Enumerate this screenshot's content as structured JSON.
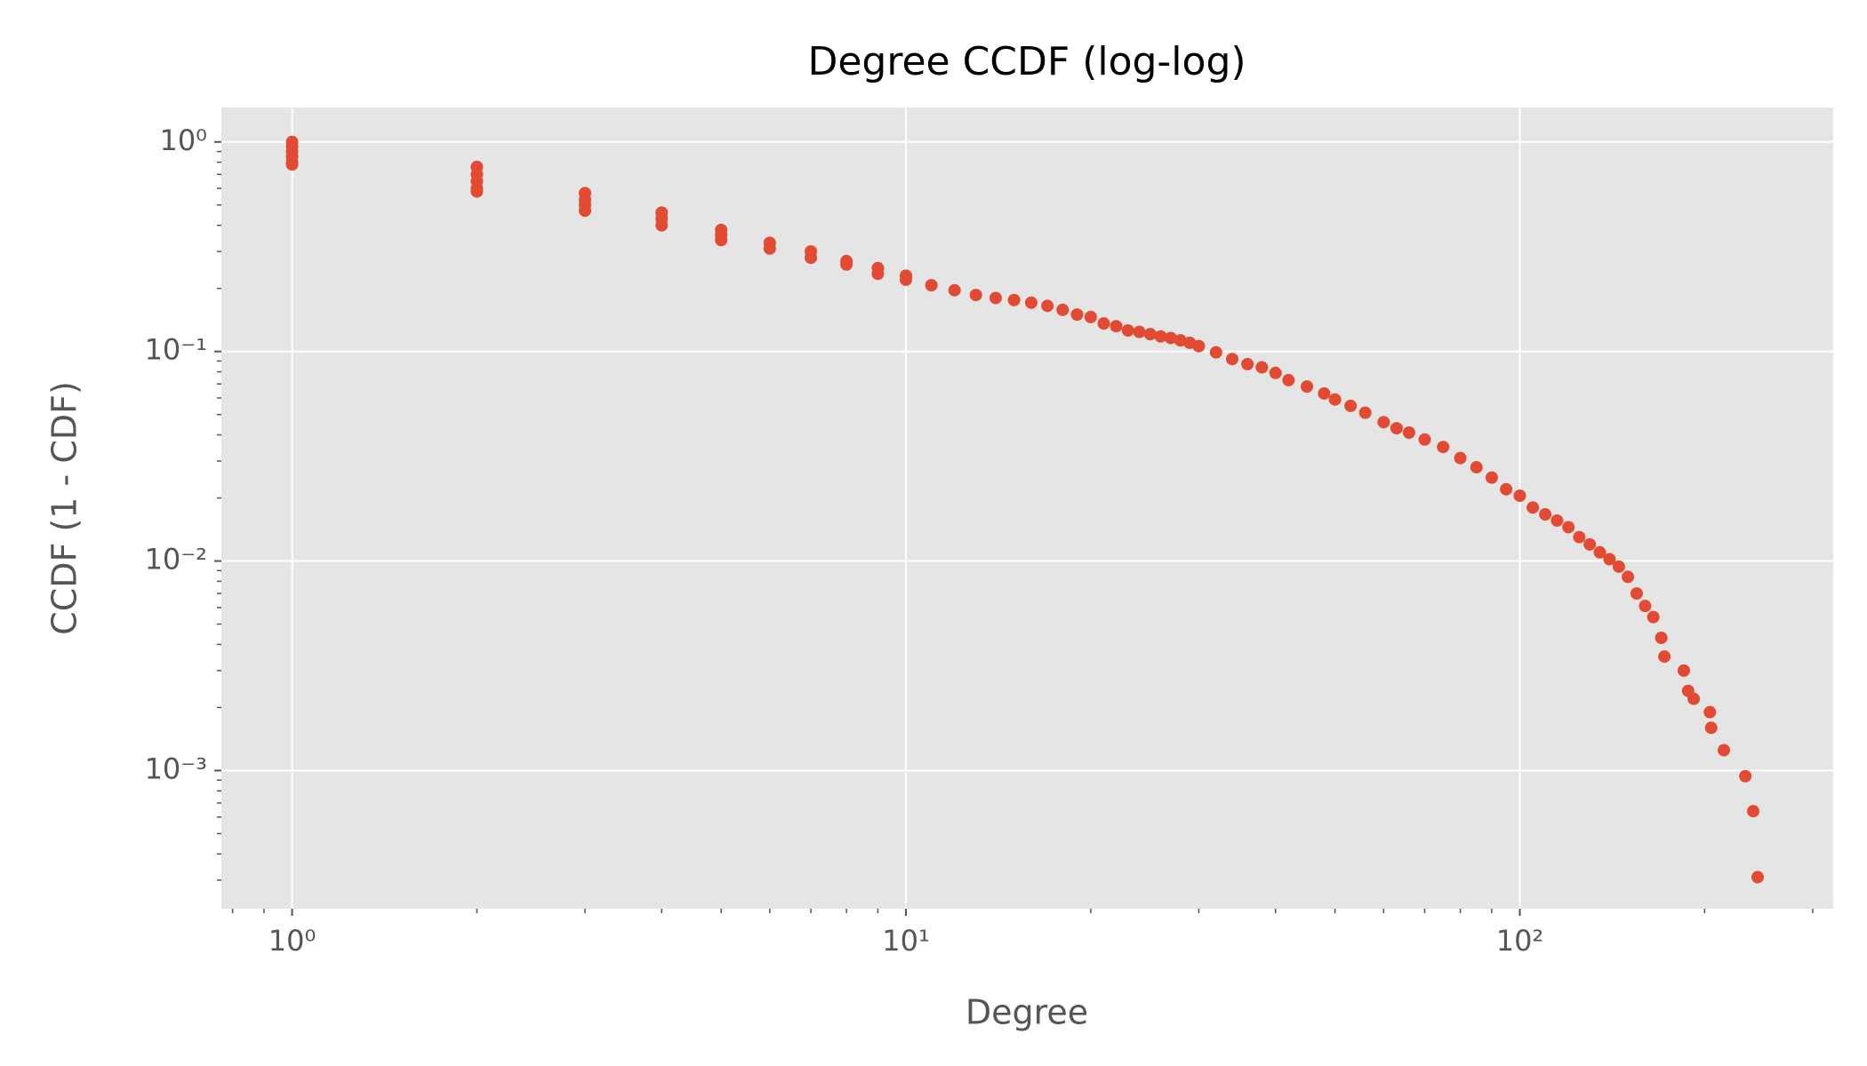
{
  "chart_data": {
    "type": "scatter",
    "title": "Degree CCDF (log-log)",
    "x_label": "Degree",
    "y_label": "CCDF (1 - CDF)",
    "x_scale": "log",
    "y_scale": "log",
    "grid": true,
    "color": "#e24a33",
    "xlim": [
      0.767,
      324
    ],
    "ylim": [
      0.000219,
      1.46
    ],
    "xticks": [
      {
        "value": 1,
        "label": "10⁰"
      },
      {
        "value": 10,
        "label": "10¹"
      },
      {
        "value": 100,
        "label": "10²"
      }
    ],
    "yticks": [
      {
        "value": 0.001,
        "label": "10⁻³"
      },
      {
        "value": 0.01,
        "label": "10⁻²"
      },
      {
        "value": 0.1,
        "label": "10⁻¹"
      },
      {
        "value": 1,
        "label": "10⁰"
      }
    ],
    "xminorticks": [
      0.8,
      0.9,
      2,
      3,
      4,
      5,
      6,
      7,
      8,
      9,
      20,
      30,
      40,
      50,
      60,
      70,
      80,
      90,
      200,
      300
    ],
    "yminorticks": [
      0.0003,
      0.0004,
      0.0005,
      0.0006,
      0.0007,
      0.0008,
      0.0009,
      0.002,
      0.003,
      0.004,
      0.005,
      0.006,
      0.007,
      0.008,
      0.009,
      0.02,
      0.03,
      0.04,
      0.05,
      0.06,
      0.07,
      0.08,
      0.09,
      0.2,
      0.3,
      0.4,
      0.5,
      0.6,
      0.7,
      0.8,
      0.9
    ],
    "x": [
      1,
      1,
      1,
      1,
      1,
      1,
      2,
      2,
      2,
      2,
      2,
      3,
      3,
      3,
      3,
      4,
      4,
      4,
      5,
      5,
      5,
      6,
      6,
      7,
      7,
      8,
      8,
      9,
      9,
      10,
      10,
      11,
      12,
      13,
      14,
      15,
      16,
      17,
      18,
      19,
      20,
      21,
      22,
      23,
      24,
      25,
      26,
      27,
      28,
      29,
      30,
      32,
      34,
      36,
      38,
      40,
      42,
      45,
      48,
      50,
      53,
      56,
      60,
      63,
      66,
      70,
      75,
      80,
      85,
      90,
      95,
      100,
      105,
      110,
      115,
      120,
      125,
      130,
      135,
      140,
      145,
      150,
      155,
      160,
      165,
      170,
      172,
      185,
      188,
      192,
      204,
      205,
      215,
      233,
      240,
      244
    ],
    "values": [
      1.0,
      0.95,
      0.9,
      0.85,
      0.8,
      0.78,
      0.76,
      0.7,
      0.65,
      0.6,
      0.58,
      0.57,
      0.53,
      0.5,
      0.47,
      0.46,
      0.43,
      0.4,
      0.38,
      0.36,
      0.34,
      0.33,
      0.31,
      0.3,
      0.28,
      0.27,
      0.26,
      0.25,
      0.235,
      0.23,
      0.22,
      0.207,
      0.196,
      0.186,
      0.18,
      0.176,
      0.171,
      0.165,
      0.158,
      0.15,
      0.146,
      0.136,
      0.132,
      0.126,
      0.124,
      0.121,
      0.118,
      0.116,
      0.113,
      0.11,
      0.106,
      0.099,
      0.092,
      0.087,
      0.084,
      0.079,
      0.073,
      0.068,
      0.063,
      0.059,
      0.055,
      0.051,
      0.046,
      0.043,
      0.041,
      0.038,
      0.035,
      0.031,
      0.028,
      0.025,
      0.022,
      0.0205,
      0.018,
      0.0167,
      0.0156,
      0.0145,
      0.013,
      0.012,
      0.011,
      0.0102,
      0.0094,
      0.0084,
      0.007,
      0.0061,
      0.0054,
      0.0043,
      0.0035,
      0.003,
      0.0024,
      0.0022,
      0.0019,
      0.0016,
      0.00125,
      0.00094,
      0.00064,
      0.00031
    ]
  }
}
